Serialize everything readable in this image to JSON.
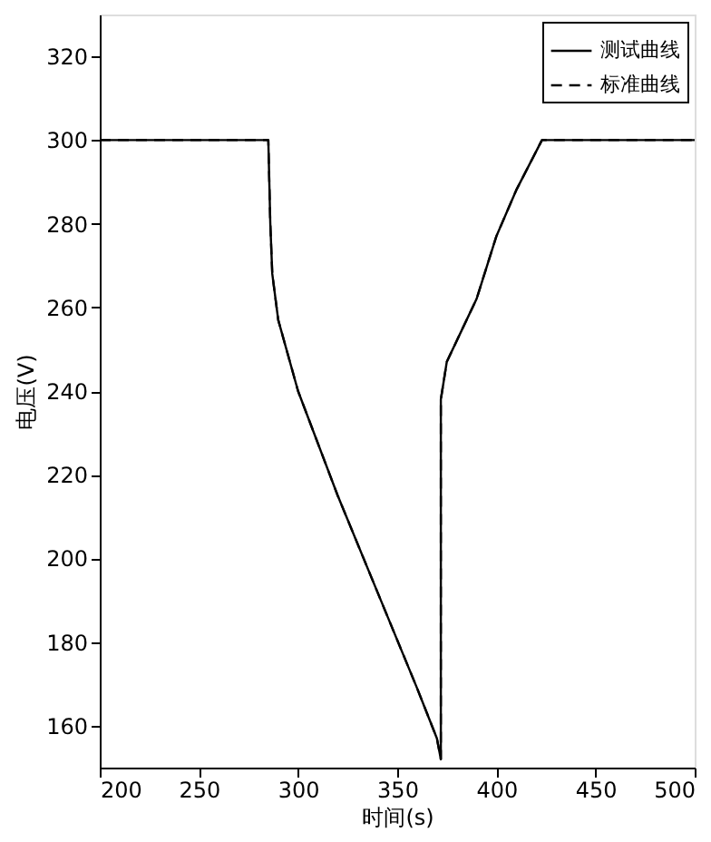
{
  "chart_data": {
    "type": "line",
    "xlabel": "时间(s)",
    "ylabel": "电压(V)",
    "xlim": [
      200,
      500
    ],
    "ylim": [
      150,
      330
    ],
    "xticks": [
      200,
      250,
      300,
      350,
      400,
      450,
      500
    ],
    "yticks": [
      160,
      180,
      200,
      220,
      240,
      260,
      280,
      300,
      320
    ],
    "legend": "top right",
    "grid": false,
    "series": [
      {
        "name": "测试曲线",
        "color": "#000000",
        "line_style": "solid",
        "x": [
          200,
          284,
          285,
          286,
          287,
          290,
          300,
          320,
          340,
          360,
          370,
          372,
          372,
          375,
          390,
          400,
          410,
          423,
          500
        ],
        "values": [
          300,
          300,
          300,
          280,
          268,
          257,
          240,
          215,
          192,
          169,
          157,
          152,
          238,
          247,
          262,
          277,
          288,
          300,
          300
        ]
      },
      {
        "name": "标准曲线",
        "color": "#000000",
        "line_style": "dashed",
        "x": [
          200,
          285,
          286,
          287,
          290,
          300,
          320,
          340,
          360,
          370,
          372,
          372,
          375,
          390,
          400,
          410,
          423,
          500
        ],
        "values": [
          300,
          300,
          280,
          268,
          257,
          240,
          215,
          192,
          169,
          157,
          152,
          238,
          247,
          262,
          277,
          288,
          300,
          300
        ]
      }
    ]
  }
}
